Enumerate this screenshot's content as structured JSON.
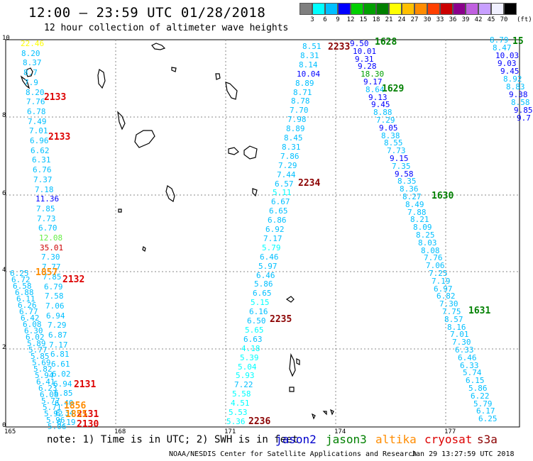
{
  "header": {
    "title": "12:00 – 23:59 UTC 01/28/2018",
    "subtitle": "12 hour collection of altimeter wave heights"
  },
  "legend": {
    "labels": [
      "3",
      "6",
      "9",
      "12",
      "15",
      "18",
      "21",
      "24",
      "27",
      "30",
      "33",
      "36",
      "39",
      "42",
      "45",
      "70"
    ],
    "colors": [
      "#7f7f7f",
      "#00ffff",
      "#00bfff",
      "#0000ff",
      "#00d000",
      "#00a000",
      "#008000",
      "#ffff00",
      "#ffc000",
      "#ff8c00",
      "#ff4000",
      "#cc0000",
      "#8b008b",
      "#c060e0",
      "#c8a0ff",
      "#f0f0ff",
      "#000000"
    ],
    "unit": "(ft)"
  },
  "axes": {
    "x_ticks": [
      "165",
      "168",
      "171",
      "174",
      "177"
    ],
    "y_ticks": [
      "0",
      "2",
      "4",
      "6",
      "8",
      "10"
    ]
  },
  "passes": [
    {
      "id": "2133",
      "color": "#dd0000"
    },
    {
      "id": "2133",
      "color": "#dd0000"
    },
    {
      "id": "2132",
      "color": "#dd0000"
    },
    {
      "id": "2131",
      "color": "#dd0000"
    },
    {
      "id": "2131",
      "color": "#dd0000"
    },
    {
      "id": "2130",
      "color": "#dd0000"
    },
    {
      "id": "2233",
      "color": "#8b0000"
    },
    {
      "id": "2234",
      "color": "#8b0000"
    },
    {
      "id": "2235",
      "color": "#8b0000"
    },
    {
      "id": "2236",
      "color": "#8b0000"
    },
    {
      "id": "1628",
      "color": "#008000"
    },
    {
      "id": "1629",
      "color": "#008000"
    },
    {
      "id": "1630",
      "color": "#008000"
    },
    {
      "id": "1631",
      "color": "#008000"
    },
    {
      "id": "15",
      "color": "#008000"
    },
    {
      "id": "1857",
      "color": "#ff8c00"
    },
    {
      "id": "1856",
      "color": "#ff8c00"
    },
    {
      "id": "1855",
      "color": "#ff8c00"
    }
  ],
  "tracks": {
    "left1": [
      "22.46",
      "8.20",
      "8.37",
      "8.7",
      "7.9",
      "8.20",
      "7.76",
      "6.78",
      "7.49",
      "7.01",
      "6.96",
      "6.62",
      "6.31",
      "6.76",
      "7.37",
      "7.18",
      "11.36",
      "7.85",
      "7.73",
      "6.70",
      "12.08",
      "35.01",
      "7.30",
      "7.77",
      "7.85",
      "6.79",
      "7.58",
      "7.06",
      "6.94",
      "7.29",
      "6.87",
      "7.17",
      "6.81",
      "6.61",
      "6.02",
      "6.94",
      "6.85",
      "6.40",
      "6.34",
      "6.19"
    ],
    "left1_colors": [
      "#ffff00",
      "#00bfff",
      "#00bfff",
      "#00bfff",
      "#00bfff",
      "#00bfff",
      "#00bfff",
      "#00bfff",
      "#00bfff",
      "#00bfff",
      "#00bfff",
      "#00bfff",
      "#00bfff",
      "#00bfff",
      "#00bfff",
      "#00bfff",
      "#0000ff",
      "#00bfff",
      "#00bfff",
      "#00bfff",
      "#66ee44",
      "#cc0000",
      "#00bfff",
      "#00bfff",
      "#00bfff",
      "#00bfff",
      "#00bfff",
      "#00bfff",
      "#00bfff",
      "#00bfff",
      "#00bfff",
      "#00bfff",
      "#00bfff",
      "#00bfff",
      "#00bfff",
      "#00bfff",
      "#00bfff",
      "#00bfff",
      "#00bfff",
      "#00bfff"
    ],
    "left2": [
      "6.25",
      "6.72",
      "6.58",
      "6.88",
      "6.11",
      "6.26",
      "6.77",
      "6.42",
      "6.08",
      "6.30",
      "6.02",
      "5.89",
      "5.77",
      "5.85",
      "5.69",
      "5.82",
      "5.94",
      "6.41",
      "6.23",
      "6.08",
      "5.77",
      "5.71",
      "5.92",
      "5.96",
      "5.06"
    ],
    "center": [
      "8.51",
      "8.31",
      "8.14",
      "10.04",
      "8.89",
      "8.71",
      "8.78",
      "7.70",
      "7.98",
      "8.89",
      "8.45",
      "8.31",
      "7.86",
      "7.29",
      "7.44",
      "6.57",
      "5.11",
      "6.67",
      "6.65",
      "6.86",
      "6.92",
      "7.17",
      "5.79",
      "6.46",
      "5.97",
      "6.46",
      "5.86",
      "6.65",
      "5.15",
      "6.16",
      "6.50",
      "5.65",
      "6.63",
      "4.18",
      "5.39",
      "5.04",
      "5.93",
      "7.22",
      "5.58",
      "4.51",
      "5.53",
      "5.36"
    ],
    "center_colors": [
      "#00bfff",
      "#00bfff",
      "#00bfff",
      "#0000ff",
      "#00bfff",
      "#00bfff",
      "#00bfff",
      "#00bfff",
      "#00bfff",
      "#00bfff",
      "#00bfff",
      "#00bfff",
      "#00bfff",
      "#00bfff",
      "#00bfff",
      "#00bfff",
      "#00ffff",
      "#00bfff",
      "#00bfff",
      "#00bfff",
      "#00bfff",
      "#00bfff",
      "#00ffff",
      "#00bfff",
      "#00bfff",
      "#00bfff",
      "#00bfff",
      "#00bfff",
      "#00ffff",
      "#00bfff",
      "#00bfff",
      "#00ffff",
      "#00bfff",
      "#00ffff",
      "#00ffff",
      "#00ffff",
      "#00ffff",
      "#00bfff",
      "#00ffff",
      "#00ffff",
      "#00ffff",
      "#00ffff"
    ],
    "right1": [
      "9.50",
      "10.01",
      "9.31",
      "9.28",
      "18.30",
      "9.17",
      "8.64",
      "9.13",
      "9.45",
      "8.88",
      "7.29",
      "9.05",
      "8.38",
      "8.55",
      "7.73",
      "9.15",
      "7.35",
      "9.58",
      "8.35",
      "8.36",
      "8.27",
      "8.49",
      "7.88",
      "8.21",
      "8.09",
      "8.25",
      "8.03",
      "8.08",
      "7.76",
      "7.06",
      "7.25",
      "7.19",
      "6.97",
      "6.82",
      "7.30",
      "7.75",
      "8.57",
      "8.16",
      "7.01",
      "7.30",
      "6.33",
      "6.46",
      "6.33",
      "5.74",
      "6.15",
      "5.86",
      "6.22",
      "5.79",
      "6.17",
      "6.25"
    ],
    "right1_colors": [
      "#0000ff",
      "#0000ff",
      "#0000ff",
      "#0000ff",
      "#00a000",
      "#0000ff",
      "#00bfff",
      "#0000ff",
      "#0000ff",
      "#00bfff",
      "#00bfff",
      "#0000ff",
      "#00bfff",
      "#00bfff",
      "#00bfff",
      "#0000ff",
      "#00bfff",
      "#0000ff",
      "#00bfff",
      "#00bfff",
      "#00bfff",
      "#00bfff",
      "#00bfff",
      "#00bfff",
      "#00bfff",
      "#00bfff",
      "#00bfff",
      "#00bfff",
      "#00bfff",
      "#00bfff",
      "#00bfff",
      "#00bfff",
      "#00bfff",
      "#00bfff",
      "#00bfff",
      "#00bfff",
      "#00bfff",
      "#00bfff",
      "#00bfff",
      "#00bfff",
      "#00bfff",
      "#00bfff",
      "#00bfff",
      "#00bfff",
      "#00bfff",
      "#00bfff",
      "#00bfff",
      "#00bfff",
      "#00bfff",
      "#00bfff"
    ],
    "right2": [
      "8.79",
      "8.47",
      "10.03",
      "9.03",
      "9.45",
      "8.92",
      "8.83",
      "9.38",
      "8.58",
      "9.85",
      "9.7"
    ],
    "right2_colors": [
      "#00bfff",
      "#00bfff",
      "#0000ff",
      "#0000ff",
      "#0000ff",
      "#00bfff",
      "#00bfff",
      "#0000ff",
      "#00bfff",
      "#0000ff",
      "#0000ff"
    ]
  },
  "footer": {
    "note": "note: 1) Time is in UTC; 2) SWH is in feet",
    "satellites": [
      {
        "name": "jason2",
        "color": "#0000cc"
      },
      {
        "name": "jason3",
        "color": "#008000"
      },
      {
        "name": "altika",
        "color": "#ff8c00"
      },
      {
        "name": "cryosat",
        "color": "#dd0000"
      },
      {
        "name": "s3a",
        "color": "#8b0000"
      }
    ],
    "credit": "NOAA/NESDIS Center for Satellite Applications and Research",
    "timestamp": "Jan 29 13:27:59 UTC 2018"
  }
}
